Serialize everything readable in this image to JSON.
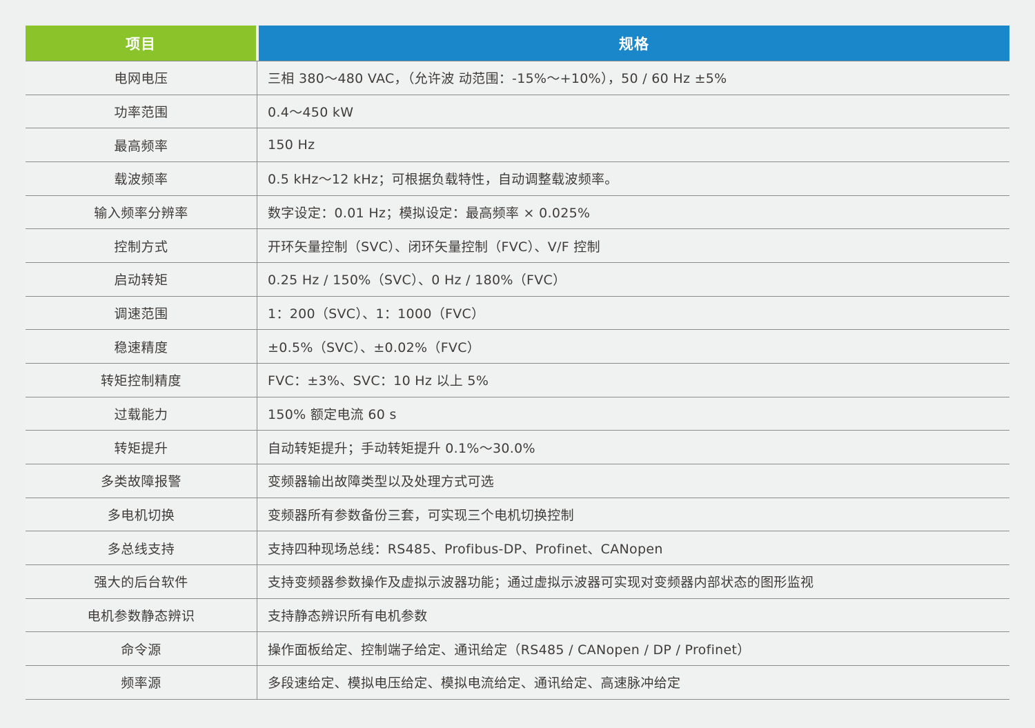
{
  "colors": {
    "header_item_bg": "#8bc32a",
    "header_spec_bg": "#1a87ca",
    "header_text": "#ffffff",
    "body_text": "#403c3a",
    "row_border": "#8a8c8b",
    "page_bg": "#eef1f0"
  },
  "table": {
    "headers": {
      "item": "项目",
      "spec": "规格"
    },
    "rows": [
      {
        "item": "电网电压",
        "spec": "三相 380～480 VAC，（允许波 动范围：-15%～+10%），50 / 60 Hz ±5%"
      },
      {
        "item": "功率范围",
        "spec": "0.4～450 kW"
      },
      {
        "item": "最高频率",
        "spec": "150 Hz"
      },
      {
        "item": "载波频率",
        "spec": "0.5 kHz～12 kHz；可根据负载特性，自动调整载波频率。"
      },
      {
        "item": "输入频率分辨率",
        "spec": "数字设定：0.01 Hz；模拟设定：最高频率 × 0.025%"
      },
      {
        "item": "控制方式",
        "spec": "开环矢量控制（SVC）、闭环矢量控制（FVC）、V/F 控制"
      },
      {
        "item": "启动转矩",
        "spec": "0.25 Hz / 150%（SVC）、0 Hz / 180%（FVC）"
      },
      {
        "item": "调速范围",
        "spec": "1：200（SVC）、1：1000（FVC）"
      },
      {
        "item": "稳速精度",
        "spec": "±0.5%（SVC）、±0.02%（FVC）"
      },
      {
        "item": "转矩控制精度",
        "spec": "FVC：±3%、SVC：10 Hz 以上 5%"
      },
      {
        "item": "过载能力",
        "spec": "150% 额定电流 60 s"
      },
      {
        "item": "转矩提升",
        "spec": "自动转矩提升；手动转矩提升 0.1%～30.0%"
      },
      {
        "item": "多类故障报警",
        "spec": "变频器输出故障类型以及处理方式可选"
      },
      {
        "item": "多电机切换",
        "spec": "变频器所有参数备份三套，可实现三个电机切换控制"
      },
      {
        "item": "多总线支持",
        "spec": "支持四种现场总线：RS485、Profibus-DP、Profinet、CANopen"
      },
      {
        "item": "强大的后台软件",
        "spec": "支持变频器参数操作及虚拟示波器功能；通过虚拟示波器可实现对变频器内部状态的图形监视"
      },
      {
        "item": "电机参数静态辨识",
        "spec": "支持静态辨识所有电机参数"
      },
      {
        "item": "命令源",
        "spec": "操作面板给定、控制端子给定、通讯给定（RS485 / CANopen / DP / Profinet）"
      },
      {
        "item": "频率源",
        "spec": "多段速给定、模拟电压给定、模拟电流给定、通讯给定、高速脉冲给定"
      }
    ]
  }
}
